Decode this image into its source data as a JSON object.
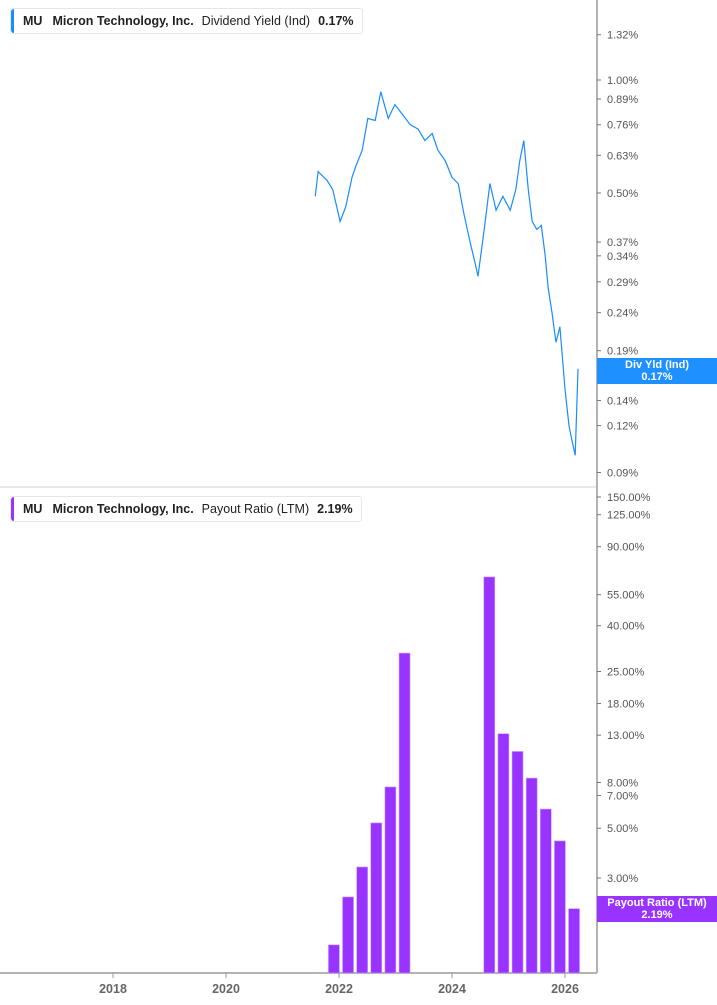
{
  "colors": {
    "yield": "#1a8cff",
    "payout": "#9933ff",
    "axis": "#b3b3b3"
  },
  "chart_data": [
    {
      "type": "line",
      "legend": {
        "ticker": "MU",
        "company": "Micron Technology, Inc.",
        "metric": "Dividend Yield (Ind)",
        "value": "0.17%"
      },
      "tag": {
        "label": "Div Yld (Ind)",
        "value": "0.17%"
      },
      "y_scale": "log",
      "ylim": [
        0.088,
        1.65
      ],
      "y_ticks": [
        "1.32%",
        "1.00%",
        "0.89%",
        "0.76%",
        "0.63%",
        "0.50%",
        "0.37%",
        "0.34%",
        "0.29%",
        "0.24%",
        "0.19%",
        "0.14%",
        "0.12%",
        "0.09%"
      ],
      "y_tick_values": [
        1.32,
        1.0,
        0.89,
        0.76,
        0.63,
        0.5,
        0.37,
        0.34,
        0.29,
        0.24,
        0.19,
        0.14,
        0.12,
        0.09
      ],
      "x": [
        2021.58,
        2021.63,
        2021.79,
        2021.89,
        2022.02,
        2022.12,
        2022.23,
        2022.3,
        2022.41,
        2022.51,
        2022.64,
        2022.74,
        2022.87,
        2022.99,
        2023.12,
        2023.26,
        2023.4,
        2023.52,
        2023.65,
        2023.75,
        2023.88,
        2024.0,
        2024.11,
        2024.21,
        2024.32,
        2024.42,
        2024.46,
        2024.57,
        2024.67,
        2024.78,
        2024.9,
        2025.03,
        2025.13,
        2025.2,
        2025.27,
        2025.35,
        2025.42,
        2025.5,
        2025.58,
        2025.65,
        2025.7,
        2025.77,
        2025.84,
        2025.91,
        2026.0,
        2026.07,
        2026.12,
        2026.18,
        2026.23
      ],
      "y": [
        0.49,
        0.57,
        0.54,
        0.51,
        0.42,
        0.46,
        0.55,
        0.59,
        0.65,
        0.79,
        0.78,
        0.93,
        0.79,
        0.86,
        0.81,
        0.76,
        0.74,
        0.69,
        0.72,
        0.65,
        0.61,
        0.55,
        0.53,
        0.44,
        0.37,
        0.32,
        0.3,
        0.4,
        0.53,
        0.45,
        0.49,
        0.45,
        0.51,
        0.61,
        0.69,
        0.51,
        0.42,
        0.4,
        0.41,
        0.34,
        0.28,
        0.24,
        0.2,
        0.22,
        0.15,
        0.12,
        0.11,
        0.1,
        0.17
      ]
    },
    {
      "type": "bar",
      "legend": {
        "ticker": "MU",
        "company": "Micron Technology, Inc.",
        "metric": "Payout Ratio (LTM)",
        "value": "2.19%"
      },
      "tag": {
        "label": "Payout Ratio (LTM)",
        "value": "2.19%"
      },
      "y_scale": "log",
      "ylim": [
        1.5,
        165
      ],
      "y_ticks": [
        "150.00%",
        "125.00%",
        "90.00%",
        "55.00%",
        "40.00%",
        "25.00%",
        "18.00%",
        "13.00%",
        "8.00%",
        "7.00%",
        "5.00%",
        "3.00%",
        "2.00%"
      ],
      "y_tick_values": [
        150,
        125,
        90,
        55,
        40,
        25,
        18,
        13,
        8,
        7,
        5,
        3,
        2
      ],
      "x": [
        2021.91,
        2022.16,
        2022.41,
        2022.66,
        2022.91,
        2023.16,
        2024.66,
        2024.91,
        2025.16,
        2025.41,
        2025.66,
        2025.91,
        2026.16
      ],
      "values": [
        1.51,
        2.47,
        3.36,
        5.28,
        7.64,
        30.2,
        66.0,
        13.2,
        11.0,
        8.37,
        6.09,
        4.39,
        2.19
      ]
    }
  ],
  "x_axis": {
    "ticks": [
      "2018",
      "2020",
      "2022",
      "2024",
      "2026"
    ],
    "tick_values": [
      2018,
      2020,
      2022,
      2024,
      2026
    ]
  }
}
